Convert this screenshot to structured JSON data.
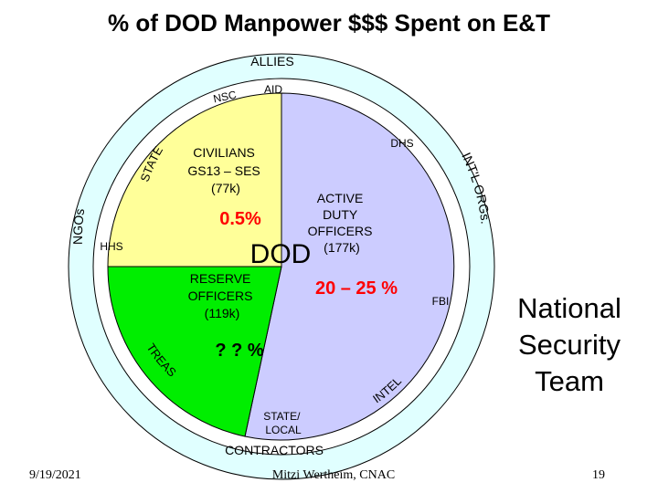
{
  "title": "% of DOD Manpower $$$ Spent on E&T",
  "outer_ring": {
    "allies": "ALLIES",
    "ngos": "NGOs",
    "intl_orgs": "INT'L ORGs.",
    "contractors": "CONTRACTORS"
  },
  "inner_ring": {
    "nsc": "NSC",
    "aid": "AID",
    "state": "STATE",
    "dhs": "DHS",
    "hhs": "HHS",
    "fbi": "FBI",
    "treas": "TREAS",
    "intel": "INTEL",
    "state_local": [
      "STATE/",
      "LOCAL"
    ]
  },
  "center_label": "DOD",
  "segments": {
    "civilians": {
      "lines": [
        "CIVILIANS",
        "GS13 – SES",
        "(77k)"
      ],
      "percent": "0.5%",
      "color": "#FFFF99"
    },
    "active_duty": {
      "lines": [
        "ACTIVE",
        "DUTY",
        "OFFICERS",
        "(177k)"
      ],
      "percent": "20 – 25 %",
      "color": "#CCCCFF"
    },
    "reserve": {
      "lines": [
        "RESERVE",
        "OFFICERS",
        "(119k)"
      ],
      "percent": "? ? %",
      "color": "#00EE00"
    }
  },
  "colors": {
    "outer_ring": "#E0FFFF",
    "inner_ring": "#FFFFFF",
    "percent_red": "#FF0000"
  },
  "team_label": [
    "National",
    "Security",
    "Team"
  ],
  "footer": {
    "date": "9/19/2021",
    "author": "Mitzi Wertheim, CNAC",
    "page": "19"
  }
}
